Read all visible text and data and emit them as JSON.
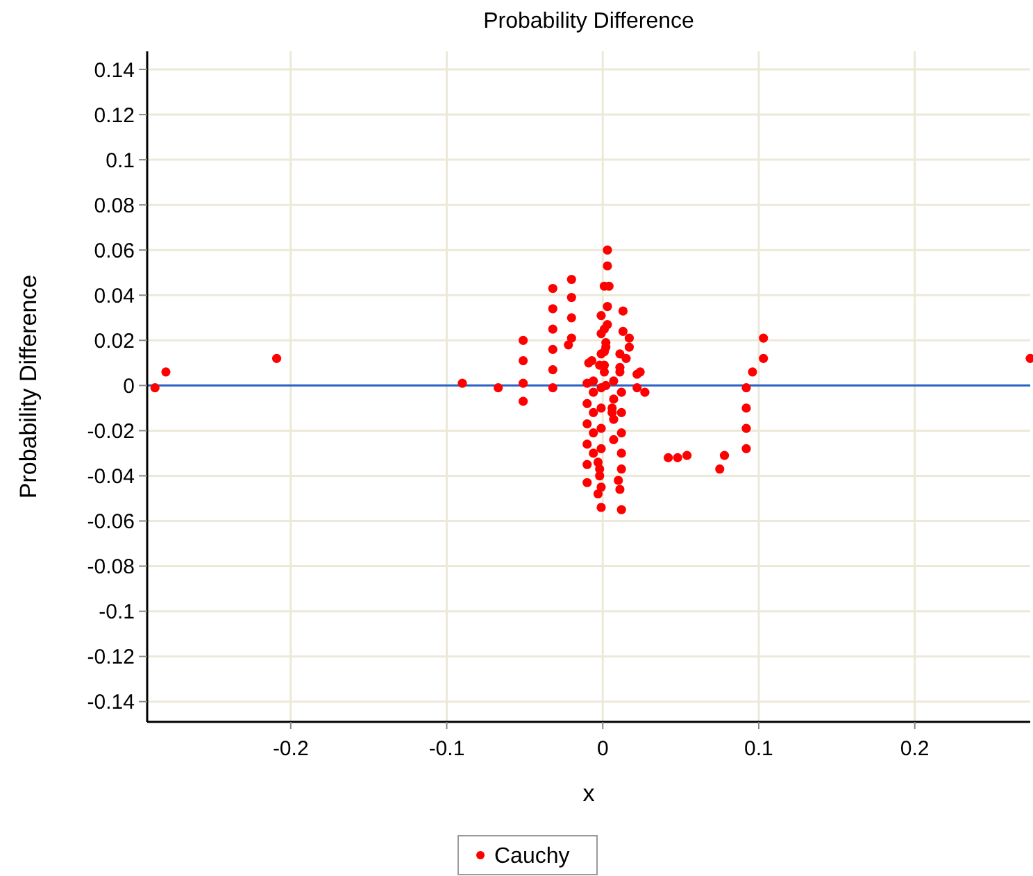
{
  "chart_data": {
    "type": "scatter",
    "title": "Probability Difference",
    "xlabel": "x",
    "ylabel": "Probability Difference",
    "xlim": [
      -0.292,
      0.274
    ],
    "ylim": [
      -0.149,
      0.148
    ],
    "xticks": [
      -0.2,
      -0.1,
      0,
      0.1,
      0.2
    ],
    "yticks": [
      -0.14,
      -0.12,
      -0.1,
      -0.08,
      -0.06,
      -0.04,
      -0.02,
      0,
      0.02,
      0.04,
      0.06,
      0.08,
      0.1,
      0.12,
      0.14
    ],
    "grid": true,
    "legend": "bottom",
    "marker": "circle",
    "ref_lines": [
      {
        "axis": "y",
        "value": 0,
        "color": "#2a62c9"
      }
    ],
    "series": [
      {
        "name": "Cauchy",
        "color": "#ff0000",
        "x": [
          -0.287,
          -0.28,
          -0.209,
          -0.09,
          -0.067,
          -0.051,
          -0.051,
          -0.051,
          -0.051,
          -0.032,
          -0.032,
          -0.032,
          -0.032,
          -0.032,
          -0.032,
          -0.02,
          -0.02,
          -0.02,
          -0.02,
          -0.022,
          0.003,
          0.003,
          0.001,
          0.004,
          0.003,
          -0.001,
          0.013,
          0.003,
          0.001,
          0.013,
          -0.001,
          0.017,
          0.002,
          0.002,
          0.017,
          0.001,
          -0.001,
          0.011,
          0.015,
          -0.007,
          -0.009,
          -0.002,
          0.001,
          0.001,
          0.011,
          0.011,
          0.022,
          0.024,
          -0.01,
          -0.006,
          -0.001,
          0.002,
          0.007,
          0.022,
          0.027,
          -0.006,
          -0.01,
          0.007,
          0.012,
          -0.001,
          0.006,
          0.006,
          -0.006,
          0.007,
          0.012,
          -0.01,
          -0.001,
          -0.006,
          0.012,
          0.007,
          -0.01,
          -0.001,
          -0.006,
          0.012,
          -0.003,
          -0.002,
          -0.01,
          0.012,
          -0.002,
          0.01,
          -0.01,
          -0.001,
          0.011,
          -0.003,
          -0.001,
          0.012,
          0.042,
          0.048,
          0.054,
          0.075,
          0.078,
          0.092,
          0.092,
          0.092,
          0.092,
          0.096,
          0.103,
          0.103,
          0.274
        ],
        "values": [
          -0.001,
          0.006,
          0.012,
          0.001,
          -0.001,
          0.02,
          0.011,
          0.001,
          -0.007,
          0.043,
          0.034,
          0.025,
          0.016,
          0.007,
          -0.001,
          0.047,
          0.039,
          0.03,
          0.021,
          0.018,
          0.06,
          0.053,
          0.044,
          0.044,
          0.035,
          0.031,
          0.033,
          0.027,
          0.025,
          0.024,
          0.023,
          0.021,
          0.019,
          0.017,
          0.017,
          0.015,
          0.014,
          0.014,
          0.012,
          0.011,
          0.01,
          0.009,
          0.009,
          0.006,
          0.008,
          0.006,
          0.005,
          0.006,
          0.001,
          0.002,
          -0.001,
          0,
          0.002,
          -0.001,
          -0.003,
          -0.003,
          -0.008,
          -0.006,
          -0.003,
          -0.01,
          -0.01,
          -0.012,
          -0.012,
          -0.015,
          -0.012,
          -0.017,
          -0.019,
          -0.021,
          -0.021,
          -0.024,
          -0.026,
          -0.028,
          -0.03,
          -0.03,
          -0.034,
          -0.037,
          -0.035,
          -0.037,
          -0.04,
          -0.042,
          -0.043,
          -0.045,
          -0.046,
          -0.048,
          -0.054,
          -0.055,
          -0.032,
          -0.032,
          -0.031,
          -0.037,
          -0.031,
          -0.028,
          -0.019,
          -0.01,
          -0.001,
          0.006,
          0.012,
          0.021,
          0.012
        ]
      }
    ]
  }
}
